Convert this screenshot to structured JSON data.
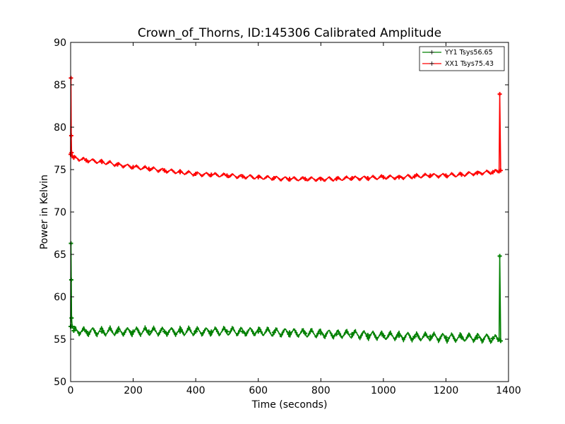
{
  "chart_data": {
    "type": "line",
    "title": "Crown_of_Thorns, ID:145306 Calibrated Amplitude",
    "xlabel": "Time (seconds)",
    "ylabel": "Power in Kelvin",
    "xlim": [
      0,
      1400
    ],
    "ylim": [
      50,
      90
    ],
    "xticks": [
      0,
      200,
      400,
      600,
      800,
      1000,
      1200,
      1400
    ],
    "yticks": [
      50,
      55,
      60,
      65,
      70,
      75,
      80,
      85,
      90
    ],
    "grid": false,
    "legend_position": "top-right",
    "series": [
      {
        "name": "YY1 Tsys56.65",
        "color": "#008000",
        "marker": "+",
        "x": [
          0,
          1,
          2,
          3,
          5,
          10,
          50,
          100,
          150,
          200,
          250,
          300,
          350,
          400,
          450,
          500,
          550,
          600,
          650,
          700,
          750,
          800,
          850,
          900,
          950,
          1000,
          1050,
          1100,
          1150,
          1200,
          1250,
          1300,
          1350,
          1370,
          1372,
          1375
        ],
        "y": [
          56.5,
          66.3,
          62.0,
          57.5,
          56.5,
          56.0,
          55.9,
          55.9,
          55.9,
          55.9,
          55.9,
          55.9,
          55.9,
          55.9,
          55.9,
          55.9,
          55.9,
          55.9,
          55.8,
          55.8,
          55.7,
          55.7,
          55.6,
          55.6,
          55.5,
          55.4,
          55.4,
          55.3,
          55.3,
          55.2,
          55.2,
          55.2,
          55.1,
          55.0,
          64.8,
          54.8
        ]
      },
      {
        "name": "XX1 Tsys75.43",
        "color": "#ff0000",
        "marker": "+",
        "x": [
          0,
          1,
          2,
          3,
          5,
          10,
          50,
          100,
          150,
          200,
          250,
          300,
          350,
          400,
          450,
          500,
          550,
          600,
          650,
          700,
          750,
          800,
          850,
          900,
          950,
          1000,
          1050,
          1100,
          1150,
          1200,
          1250,
          1300,
          1350,
          1370,
          1372,
          1375
        ],
        "y": [
          76.8,
          85.8,
          79.0,
          77.0,
          76.6,
          76.4,
          76.1,
          75.9,
          75.6,
          75.3,
          75.1,
          74.9,
          74.7,
          74.5,
          74.4,
          74.3,
          74.2,
          74.1,
          74.0,
          73.9,
          73.9,
          73.9,
          73.9,
          74.0,
          74.0,
          74.1,
          74.1,
          74.2,
          74.3,
          74.3,
          74.4,
          74.6,
          74.7,
          74.8,
          83.9,
          74.9
        ]
      }
    ]
  }
}
